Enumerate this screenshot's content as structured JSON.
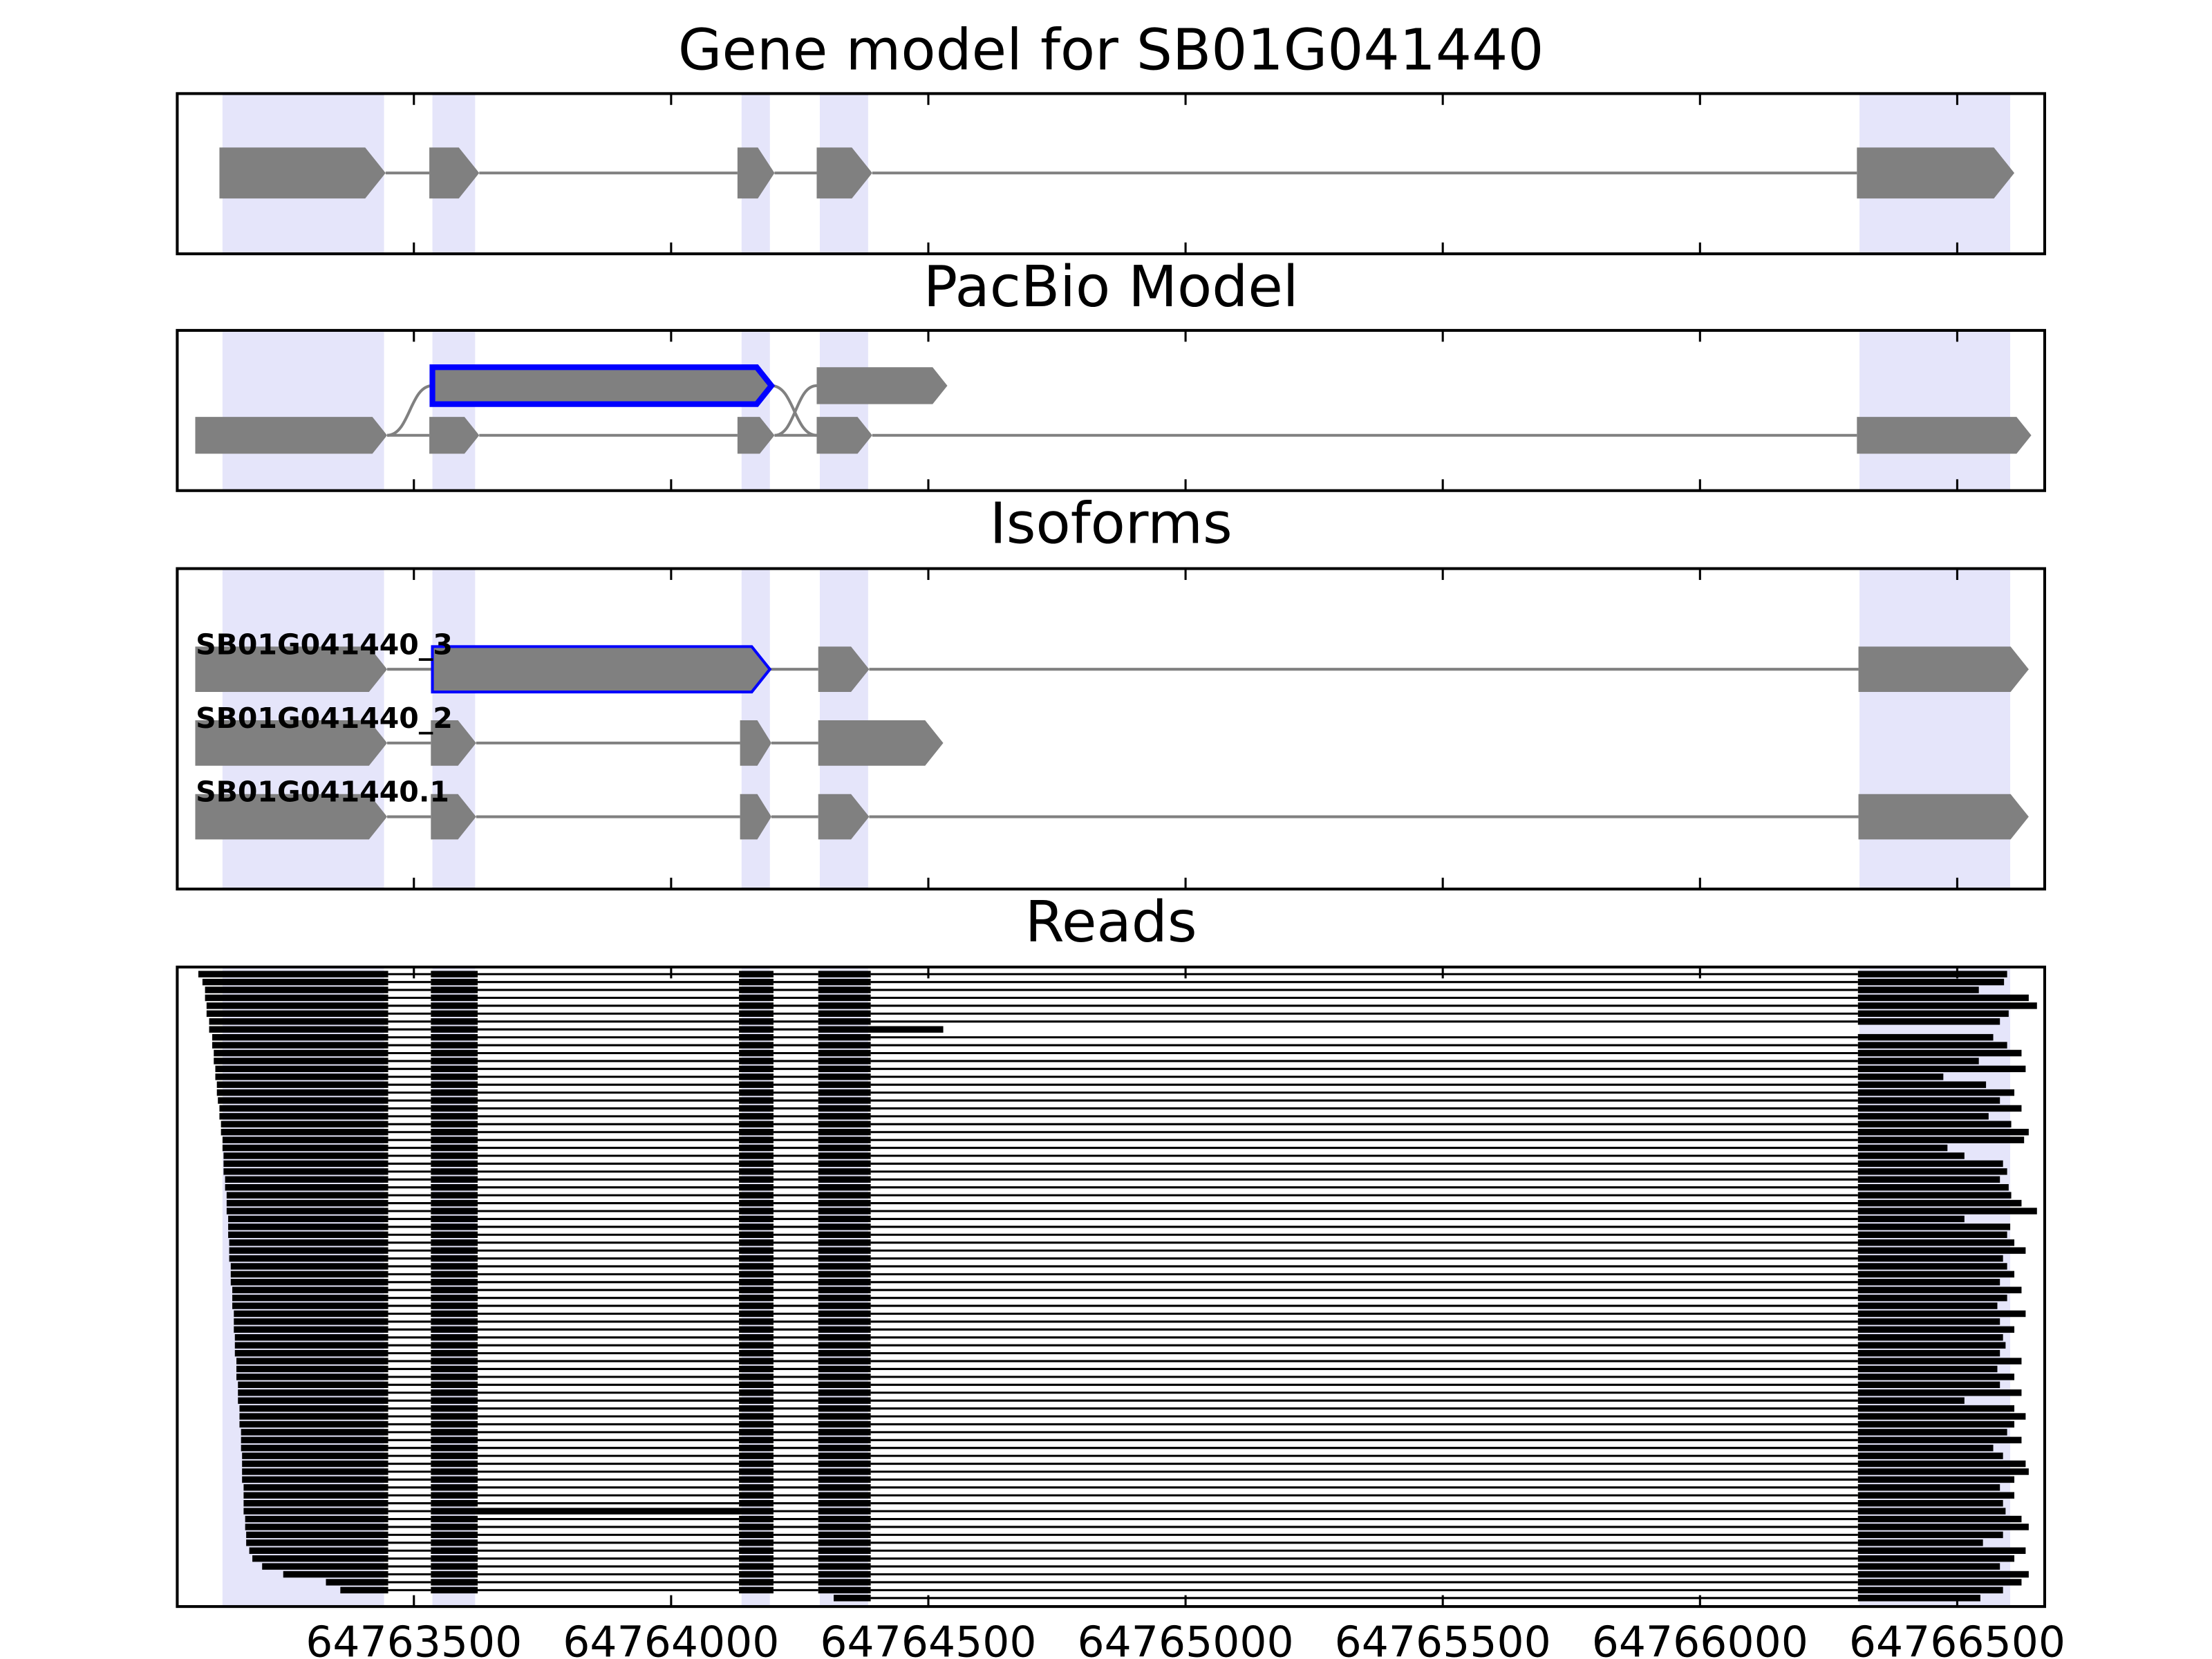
{
  "chart_data": {
    "type": "gene_model",
    "xlim": [
      64763040,
      64766670
    ],
    "xticks": [
      64763500,
      64764000,
      64764500,
      64765000,
      64765500,
      64766000,
      64766500
    ],
    "exon_color": "#808080",
    "intron_color": "#808080",
    "highlight_color": "#e5e5fa",
    "outline_color": "#0000ff",
    "read_color": "#000000",
    "highlight_regions": [
      [
        64763128,
        64763442
      ],
      [
        64763536,
        64763619
      ],
      [
        64764137,
        64764192
      ],
      [
        64764289,
        64764383
      ],
      [
        64766310,
        64766603
      ]
    ],
    "panels": [
      {
        "title": "Gene model for SB01G041440",
        "tracks": [
          {
            "exons": [
              [
                64763122,
                64763445
              ],
              [
                64763530,
                64763627
              ],
              [
                64764129,
                64764201
              ],
              [
                64764283,
                64764391
              ],
              [
                64766305,
                64766611
              ]
            ]
          }
        ]
      },
      {
        "title": "PacBio Model",
        "tracks": [
          {
            "exons": [
              [
                64763075,
                64763448
              ],
              [
                64763530,
                64763627
              ],
              [
                64764129,
                64764201
              ],
              [
                64764283,
                64764391
              ],
              [
                64766305,
                64766644
              ]
            ]
          },
          {
            "exons": [
              [
                64763536,
                64764195
              ],
              [
                64764283,
                64764537
              ]
            ],
            "highlight": 0,
            "introns": false
          }
        ],
        "links": [
          [
            0,
            0,
            1,
            0
          ],
          [
            1,
            0,
            0,
            3
          ],
          [
            0,
            2,
            1,
            1
          ]
        ]
      },
      {
        "title": "Isoforms",
        "tracks": [
          {
            "label": "SB01G041440_3",
            "exons": [
              [
                64763075,
                64763448
              ],
              [
                64763536,
                64764192
              ],
              [
                64764286,
                64764385
              ],
              [
                64766308,
                64766639
              ]
            ],
            "highlight": 1
          },
          {
            "label": "SB01G041440_2",
            "exons": [
              [
                64763075,
                64763448
              ],
              [
                64763533,
                64763621
              ],
              [
                64764134,
                64764195
              ],
              [
                64764286,
                64764529
              ]
            ]
          },
          {
            "label": "SB01G041440.1",
            "exons": [
              [
                64763075,
                64763448
              ],
              [
                64763533,
                64763621
              ],
              [
                64764134,
                64764195
              ],
              [
                64764286,
                64764385
              ],
              [
                64766308,
                64766639
              ]
            ]
          }
        ]
      },
      {
        "title": "Reads",
        "read_exons": [
          [
            null,
            64763450
          ],
          [
            64763533,
            64763624
          ],
          [
            64764132,
            64764199
          ],
          [
            64764286,
            64764388
          ],
          [
            64766307,
            null
          ]
        ],
        "reads": [
          {
            "start": 64763081,
            "end": 64766597
          },
          {
            "start": 64763089,
            "end": 64766591
          },
          {
            "start": 64763094,
            "end": 64766542
          },
          {
            "start": 64763094,
            "end": 64766639
          },
          {
            "start": 64763097,
            "end": 64766655
          },
          {
            "start": 64763097,
            "end": 64766600
          },
          {
            "start": 64763102,
            "end": 64766583
          },
          {
            "blocks": [
              [
                64763102,
                64763450
              ],
              [
                64763533,
                64763624
              ],
              [
                64764132,
                64764199
              ],
              [
                64764286,
                64764529
              ]
            ]
          },
          {
            "start": 64763108,
            "end": 64766570
          },
          {
            "start": 64763108,
            "end": 64766597
          },
          {
            "start": 64763111,
            "end": 64766625
          },
          {
            "start": 64763111,
            "end": 64766542
          },
          {
            "start": 64763114,
            "end": 64766633
          },
          {
            "start": 64763114,
            "end": 64766473
          },
          {
            "start": 64763117,
            "end": 64766556
          },
          {
            "start": 64763117,
            "end": 64766611
          },
          {
            "start": 64763119,
            "end": 64766583
          },
          {
            "start": 64763122,
            "end": 64766625
          },
          {
            "start": 64763122,
            "end": 64766561
          },
          {
            "start": 64763125,
            "end": 64766605
          },
          {
            "start": 64763125,
            "end": 64766639
          },
          {
            "start": 64763128,
            "end": 64766630
          },
          {
            "start": 64763128,
            "end": 64766481
          },
          {
            "start": 64763130,
            "end": 64766514
          },
          {
            "start": 64763130,
            "end": 64766589
          },
          {
            "start": 64763130,
            "end": 64766597
          },
          {
            "start": 64763133,
            "end": 64766583
          },
          {
            "start": 64763133,
            "end": 64766600
          },
          {
            "start": 64763136,
            "end": 64766605
          },
          {
            "start": 64763136,
            "end": 64766625
          },
          {
            "start": 64763136,
            "end": 64766655
          },
          {
            "start": 64763139,
            "end": 64766514
          },
          {
            "start": 64763139,
            "end": 64766603
          },
          {
            "start": 64763139,
            "end": 64766597
          },
          {
            "start": 64763141,
            "end": 64766611
          },
          {
            "start": 64763141,
            "end": 64766633
          },
          {
            "start": 64763141,
            "end": 64766589
          },
          {
            "start": 64763144,
            "end": 64766597
          },
          {
            "start": 64763144,
            "end": 64766611
          },
          {
            "start": 64763144,
            "end": 64766583
          },
          {
            "start": 64763147,
            "end": 64766625
          },
          {
            "start": 64763147,
            "end": 64766597
          },
          {
            "start": 64763147,
            "end": 64766578
          },
          {
            "start": 64763150,
            "end": 64766633
          },
          {
            "start": 64763150,
            "end": 64766583
          },
          {
            "start": 64763150,
            "end": 64766611
          },
          {
            "start": 64763152,
            "end": 64766589
          },
          {
            "start": 64763152,
            "end": 64766594
          },
          {
            "start": 64763152,
            "end": 64766583
          },
          {
            "start": 64763155,
            "end": 64766625
          },
          {
            "start": 64763155,
            "end": 64766578
          },
          {
            "start": 64763155,
            "end": 64766611
          },
          {
            "start": 64763158,
            "end": 64766583
          },
          {
            "start": 64763158,
            "end": 64766625
          },
          {
            "start": 64763158,
            "end": 64766514
          },
          {
            "start": 64763161,
            "end": 64766611
          },
          {
            "start": 64763161,
            "end": 64766633
          },
          {
            "start": 64763161,
            "end": 64766611
          },
          {
            "start": 64763164,
            "end": 64766597
          },
          {
            "start": 64763164,
            "end": 64766625
          },
          {
            "start": 64763164,
            "end": 64766570
          },
          {
            "start": 64763166,
            "end": 64766589
          },
          {
            "start": 64763166,
            "end": 64766633
          },
          {
            "start": 64763166,
            "end": 64766639
          },
          {
            "start": 64763166,
            "end": 64766611
          },
          {
            "start": 64763169,
            "end": 64766583
          },
          {
            "start": 64763169,
            "end": 64766611
          },
          {
            "start": 64763169,
            "end": 64766589
          },
          {
            "blocks": [
              [
                64763169,
                64763450
              ],
              [
                64763533,
                64764199
              ],
              [
                64764286,
                64764388
              ],
              [
                64766307,
                64766594
              ]
            ]
          },
          {
            "start": 64763172,
            "end": 64766625
          },
          {
            "start": 64763172,
            "end": 64766639
          },
          {
            "start": 64763174,
            "end": 64766589
          },
          {
            "start": 64763174,
            "end": 64766550
          },
          {
            "start": 64763180,
            "end": 64766633
          },
          {
            "start": 64763186,
            "end": 64766611
          },
          {
            "start": 64763205,
            "end": 64766583
          },
          {
            "start": 64763246,
            "end": 64766639
          },
          {
            "start": 64763329,
            "end": 64766625
          },
          {
            "start": 64763357,
            "end": 64766589
          },
          {
            "start": 64764316,
            "end": 64766545
          }
        ]
      }
    ]
  }
}
